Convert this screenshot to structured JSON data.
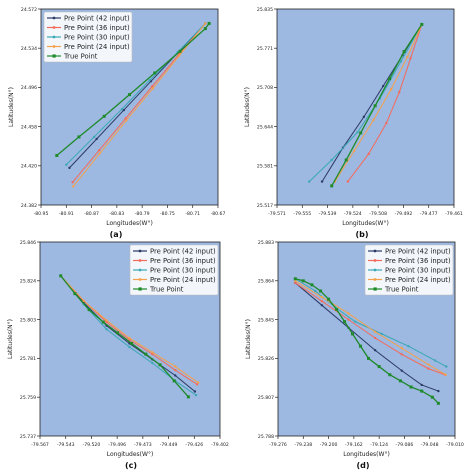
{
  "legend_labels": [
    "Pre Point (42 input)",
    "Pre Point (36 input)",
    "Pre Point (30 input)",
    "Pre Point (24 input)",
    "True Point"
  ],
  "colors": {
    "plot_background": "#9db8e1",
    "pre42": "#2b3a67",
    "pre36": "#f46a5a",
    "pre30": "#3aa8b5",
    "pre24": "#f5a14b",
    "true": "#1e8a2a"
  },
  "chart_data": [
    {
      "panel_label": "(a)",
      "type": "line",
      "xlabel": "Longitudes(W°)",
      "ylabel": "Latitudes(N°)",
      "xlim": [
        -80.95,
        -80.67
      ],
      "ylim": [
        24.382,
        24.572
      ],
      "xticks": [
        "-80.95",
        "-80.91",
        "-80.87",
        "-80.83",
        "-80.79",
        "-80.75",
        "-80.71",
        "-80.67"
      ],
      "yticks": [
        "24.382",
        "24.420",
        "24.458",
        "24.496",
        "24.534",
        "24.572"
      ],
      "legend_position": "upper-left",
      "grid": false,
      "series": [
        {
          "name": "Pre Point (42 input)",
          "x": [
            -80.905,
            -80.862,
            -80.819,
            -80.776,
            -80.733,
            -80.69
          ],
          "y": [
            24.418,
            24.446,
            24.474,
            24.502,
            24.53,
            24.558
          ]
        },
        {
          "name": "Pre Point (36 input)",
          "x": [
            -80.9,
            -80.858,
            -80.816,
            -80.774,
            -80.732,
            -80.69
          ],
          "y": [
            24.404,
            24.435,
            24.466,
            24.497,
            24.528,
            24.558
          ]
        },
        {
          "name": "Pre Point (30 input)",
          "x": [
            -80.91,
            -80.866,
            -80.822,
            -80.778,
            -80.734,
            -80.69
          ],
          "y": [
            24.421,
            24.448,
            24.475,
            24.503,
            24.53,
            24.558
          ]
        },
        {
          "name": "Pre Point (24 input)",
          "x": [
            -80.899,
            -80.857,
            -80.815,
            -80.773,
            -80.731,
            -80.69
          ],
          "y": [
            24.4,
            24.432,
            24.464,
            24.495,
            24.527,
            24.558
          ]
        },
        {
          "name": "True Point",
          "x": [
            -80.925,
            -80.89,
            -80.85,
            -80.81,
            -80.77,
            -80.73,
            -80.69,
            -80.684
          ],
          "y": [
            24.43,
            24.448,
            24.468,
            24.489,
            24.51,
            24.531,
            24.553,
            24.558
          ]
        }
      ]
    },
    {
      "panel_label": "(b)",
      "type": "line",
      "xlabel": "Longitudes(W°)",
      "ylabel": "Latitudes(N°)",
      "xlim": [
        -79.571,
        -79.461
      ],
      "ylim": [
        25.517,
        25.835
      ],
      "xticks": [
        "-79.571",
        "-79.555",
        "-79.539",
        "-79.524",
        "-79.508",
        "-79.492",
        "-79.477",
        "-79.461"
      ],
      "yticks": [
        "25.517",
        "25.581",
        "25.644",
        "25.708",
        "25.771",
        "25.835"
      ],
      "legend_position": "none",
      "grid": false,
      "series": [
        {
          "name": "Pre Point (42 input)",
          "x": [
            -79.543,
            -79.53,
            -79.517,
            -79.505,
            -79.493,
            -79.481
          ],
          "y": [
            25.555,
            25.61,
            25.66,
            25.71,
            25.76,
            25.81
          ]
        },
        {
          "name": "Pre Point (36 input)",
          "x": [
            -79.527,
            -79.514,
            -79.503,
            -79.495,
            -79.488,
            -79.481
          ],
          "y": [
            25.555,
            25.6,
            25.65,
            25.7,
            25.755,
            25.81
          ]
        },
        {
          "name": "Pre Point (30 input)",
          "x": [
            -79.551,
            -79.537,
            -79.521,
            -79.507,
            -79.494,
            -79.481
          ],
          "y": [
            25.555,
            25.59,
            25.635,
            25.69,
            25.75,
            25.81
          ]
        },
        {
          "name": "Pre Point (24 input)",
          "x": [
            -79.535,
            -79.523,
            -79.511,
            -79.5,
            -79.49,
            -79.481
          ],
          "y": [
            25.555,
            25.605,
            25.655,
            25.705,
            25.757,
            25.81
          ]
        },
        {
          "name": "True Point",
          "x": [
            -79.537,
            -79.528,
            -79.519,
            -79.51,
            -79.501,
            -79.492,
            -79.481
          ],
          "y": [
            25.548,
            25.59,
            25.634,
            25.678,
            25.722,
            25.766,
            25.81
          ]
        }
      ]
    },
    {
      "panel_label": "(c)",
      "type": "line",
      "xlabel": "Longitudes(W°)",
      "ylabel": "Latitudes(N°)",
      "xlim": [
        -79.567,
        -79.402
      ],
      "ylim": [
        25.737,
        25.846
      ],
      "xticks": [
        "-79.567",
        "-79.543",
        "-79.520",
        "-79.496",
        "-79.473",
        "-79.449",
        "-79.426",
        "-79.402"
      ],
      "yticks": [
        "25.737",
        "25.759",
        "25.781",
        "25.803",
        "25.824",
        "25.846"
      ],
      "legend_position": "upper-right",
      "grid": false,
      "series": [
        {
          "name": "Pre Point (42 input)",
          "x": [
            -79.548,
            -79.527,
            -79.506,
            -79.485,
            -79.464,
            -79.443,
            -79.425
          ],
          "y": [
            25.827,
            25.812,
            25.799,
            25.789,
            25.78,
            25.771,
            25.762
          ]
        },
        {
          "name": "Pre Point (36 input)",
          "x": [
            -79.548,
            -79.527,
            -79.506,
            -79.485,
            -79.464,
            -79.443,
            -79.423
          ],
          "y": [
            25.827,
            25.813,
            25.801,
            25.791,
            25.783,
            25.774,
            25.766
          ]
        },
        {
          "name": "Pre Point (30 input)",
          "x": [
            -79.548,
            -79.527,
            -79.506,
            -79.485,
            -79.464,
            -79.443,
            -79.424
          ],
          "y": [
            25.827,
            25.811,
            25.797,
            25.787,
            25.778,
            25.768,
            25.76
          ]
        },
        {
          "name": "Pre Point (24 input)",
          "x": [
            -79.548,
            -79.527,
            -79.506,
            -79.485,
            -79.464,
            -79.443,
            -79.422
          ],
          "y": [
            25.827,
            25.813,
            25.802,
            25.792,
            25.784,
            25.776,
            25.767
          ]
        },
        {
          "name": "True Point",
          "x": [
            -79.548,
            -79.535,
            -79.522,
            -79.509,
            -79.496,
            -79.483,
            -79.47,
            -79.457,
            -79.444,
            -79.431
          ],
          "y": [
            25.827,
            25.817,
            25.808,
            25.801,
            25.795,
            25.789,
            25.783,
            25.777,
            25.768,
            25.759
          ]
        }
      ]
    },
    {
      "panel_label": "(d)",
      "type": "line",
      "xlabel": "Longitudes(W°)",
      "ylabel": "Latitudes(N°)",
      "xlim": [
        -79.276,
        -79.01
      ],
      "ylim": [
        25.788,
        25.883
      ],
      "xticks": [
        "-79.276",
        "-79.238",
        "-79.200",
        "-79.162",
        "-79.124",
        "-79.086",
        "-79.048",
        "-79.010"
      ],
      "yticks": [
        "25.788",
        "25.807",
        "25.826",
        "25.845",
        "25.864",
        "25.883"
      ],
      "legend_position": "upper-right",
      "grid": false,
      "series": [
        {
          "name": "Pre Point (42 input)",
          "x": [
            -79.25,
            -79.21,
            -79.17,
            -79.13,
            -79.09,
            -79.06,
            -79.035
          ],
          "y": [
            25.863,
            25.852,
            25.841,
            25.83,
            25.82,
            25.813,
            25.81
          ]
        },
        {
          "name": "Pre Point (36 input)",
          "x": [
            -79.25,
            -79.21,
            -79.17,
            -79.13,
            -79.09,
            -79.05,
            -79.025
          ],
          "y": [
            25.863,
            25.854,
            25.845,
            25.836,
            25.828,
            25.821,
            25.818
          ]
        },
        {
          "name": "Pre Point (30 input)",
          "x": [
            -79.25,
            -79.22,
            -79.19,
            -79.16,
            -79.12,
            -79.08,
            -79.04,
            -79.023
          ],
          "y": [
            25.865,
            25.859,
            25.851,
            25.844,
            25.838,
            25.832,
            25.825,
            25.822
          ]
        },
        {
          "name": "Pre Point (24 input)",
          "x": [
            -79.25,
            -79.21,
            -79.17,
            -79.13,
            -79.09,
            -79.05,
            -79.024
          ],
          "y": [
            25.864,
            25.856,
            25.848,
            25.839,
            25.831,
            25.823,
            25.818
          ]
        },
        {
          "name": "True Point",
          "x": [
            -79.25,
            -79.238,
            -79.225,
            -79.212,
            -79.2,
            -79.188,
            -79.176,
            -79.164,
            -79.152,
            -79.14,
            -79.124,
            -79.108,
            -79.092,
            -79.076,
            -79.06,
            -79.044,
            -79.035
          ],
          "y": [
            25.865,
            25.864,
            25.862,
            25.859,
            25.855,
            25.85,
            25.844,
            25.838,
            25.832,
            25.826,
            25.822,
            25.818,
            25.815,
            25.812,
            25.81,
            25.807,
            25.804
          ]
        }
      ]
    }
  ]
}
